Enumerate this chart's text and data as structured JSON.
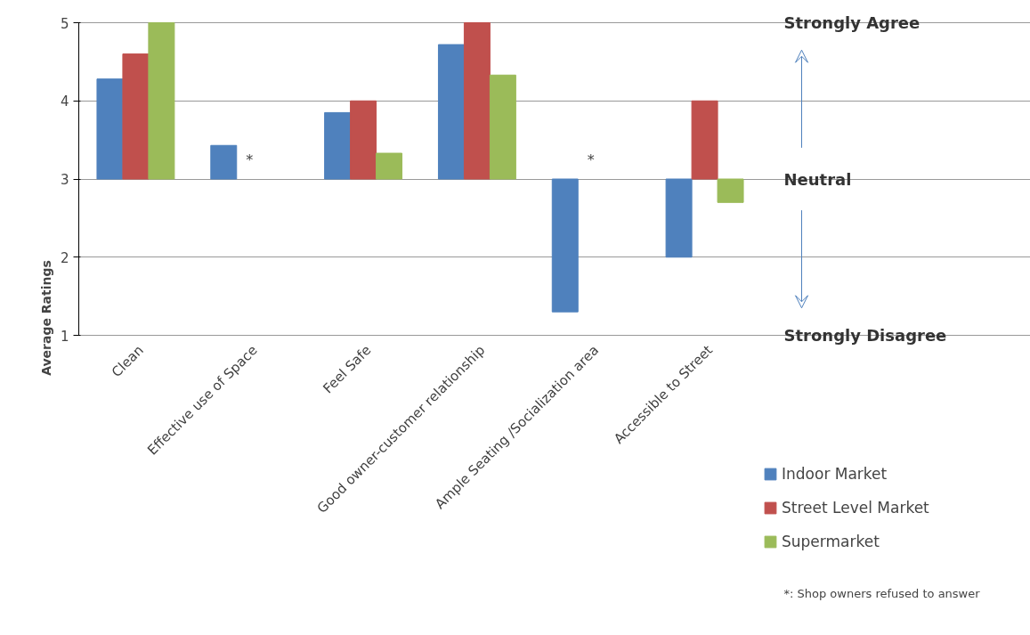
{
  "chart_data": {
    "type": "bar",
    "ylabel": "Average Ratings",
    "categories": [
      "Clean",
      "Effective use of Space",
      "Feel Safe",
      "Good owner-customer relationship",
      "Ample Seating /Socialization area",
      "Accessible to Street"
    ],
    "series": [
      {
        "name": "Indoor Market",
        "color": "#4f81bd",
        "base": [
          3,
          3,
          3,
          3,
          3,
          3
        ],
        "values": [
          1.28,
          0.43,
          0.85,
          1.72,
          -1.7,
          -1.0
        ]
      },
      {
        "name": "Street Level Market",
        "color": "#c0504d",
        "base": [
          3,
          null,
          3,
          3,
          null,
          3
        ],
        "values": [
          1.6,
          null,
          1.0,
          2.0,
          null,
          1.0
        ]
      },
      {
        "name": "Supermarket",
        "color": "#9bbb59",
        "base": [
          3,
          null,
          3,
          3,
          null,
          3
        ],
        "values": [
          2.0,
          null,
          0.33,
          1.33,
          null,
          -0.3
        ]
      }
    ],
    "ylim": [
      1,
      5
    ],
    "yticks": [
      1,
      2,
      3,
      4,
      5
    ],
    "grid": "y",
    "legend": "bottom right",
    "annotations": [
      "*",
      "*",
      "Strongly Agree",
      "Neutral",
      "Strongly Disagree",
      "*: Shop owners refused to answer"
    ]
  }
}
